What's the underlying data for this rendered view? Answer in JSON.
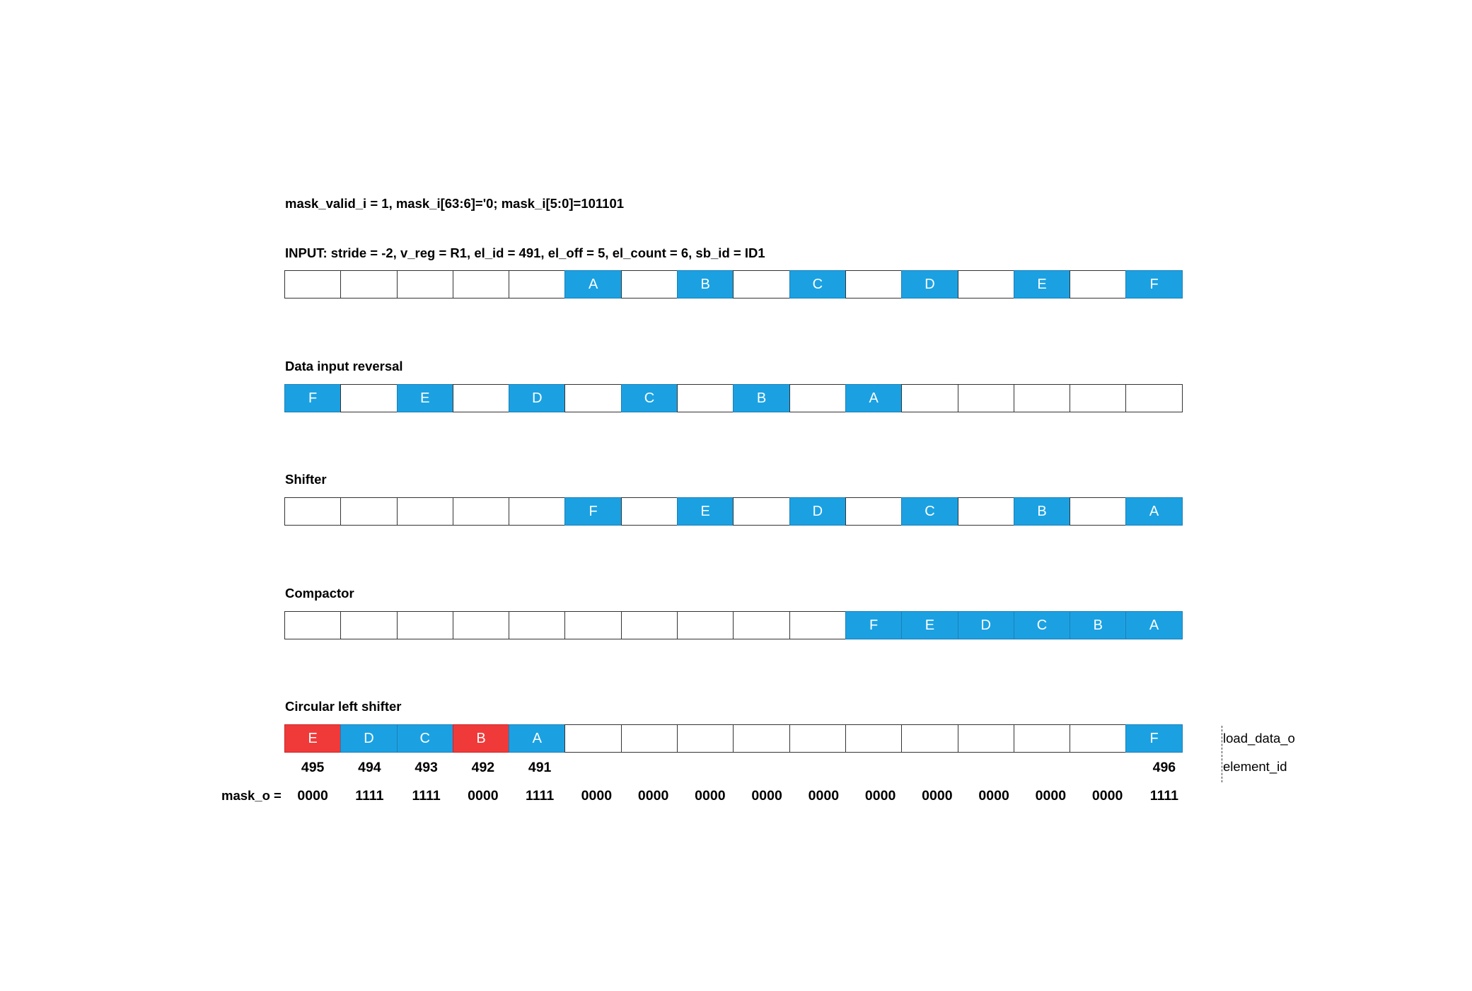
{
  "mask_line": "mask_valid_i = 1, mask_i[63:6]='0; mask_i[5:0]=101101",
  "stages": [
    {
      "label": "INPUT: stride = -2, v_reg = R1, el_id = 491, el_off = 5, el_count = 6, sb_id = ID1",
      "cells": [
        "",
        "",
        "",
        "",
        "",
        "A",
        "",
        "B",
        "",
        "C",
        "",
        "D",
        "",
        "E",
        "",
        "F"
      ],
      "colors": [
        "white",
        "white",
        "white",
        "white",
        "white",
        "blue",
        "white",
        "blue",
        "white",
        "blue",
        "white",
        "blue",
        "white",
        "blue",
        "white",
        "blue"
      ]
    },
    {
      "label": "Data input reversal",
      "cells": [
        "F",
        "",
        "E",
        "",
        "D",
        "",
        "C",
        "",
        "B",
        "",
        "A",
        "",
        "",
        "",
        "",
        ""
      ],
      "colors": [
        "blue",
        "white",
        "blue",
        "white",
        "blue",
        "white",
        "blue",
        "white",
        "blue",
        "white",
        "blue",
        "white",
        "white",
        "white",
        "white",
        "white"
      ]
    },
    {
      "label": "Shifter",
      "cells": [
        "",
        "",
        "",
        "",
        "",
        "F",
        "",
        "E",
        "",
        "D",
        "",
        "C",
        "",
        "B",
        "",
        "A"
      ],
      "colors": [
        "white",
        "white",
        "white",
        "white",
        "white",
        "blue",
        "white",
        "blue",
        "white",
        "blue",
        "white",
        "blue",
        "white",
        "blue",
        "white",
        "blue"
      ]
    },
    {
      "label": "Compactor",
      "cells": [
        "",
        "",
        "",
        "",
        "",
        "",
        "",
        "",
        "",
        "",
        "F",
        "E",
        "D",
        "C",
        "B",
        "A"
      ],
      "colors": [
        "white",
        "white",
        "white",
        "white",
        "white",
        "white",
        "white",
        "white",
        "white",
        "white",
        "blue",
        "blue",
        "blue",
        "blue",
        "blue",
        "blue"
      ]
    },
    {
      "label": "Circular left shifter",
      "cells": [
        "E",
        "D",
        "C",
        "B",
        "A",
        "",
        "",
        "",
        "",
        "",
        "",
        "",
        "",
        "",
        "",
        "F"
      ],
      "colors": [
        "red",
        "blue",
        "blue",
        "red",
        "blue",
        "white",
        "white",
        "white",
        "white",
        "white",
        "white",
        "white",
        "white",
        "white",
        "white",
        "blue"
      ]
    }
  ],
  "element_ids": [
    "495",
    "494",
    "493",
    "492",
    "491",
    "",
    "",
    "",
    "",
    "",
    "",
    "",
    "",
    "",
    "",
    "496"
  ],
  "mask_prefix": "mask_o =",
  "mask_o": [
    "0000",
    "1111",
    "1111",
    "0000",
    "1111",
    "0000",
    "0000",
    "0000",
    "0000",
    "0000",
    "0000",
    "0000",
    "0000",
    "0000",
    "0000",
    "1111"
  ],
  "side_labels": {
    "load_data": "load_data_o",
    "element_id": "element_id"
  }
}
